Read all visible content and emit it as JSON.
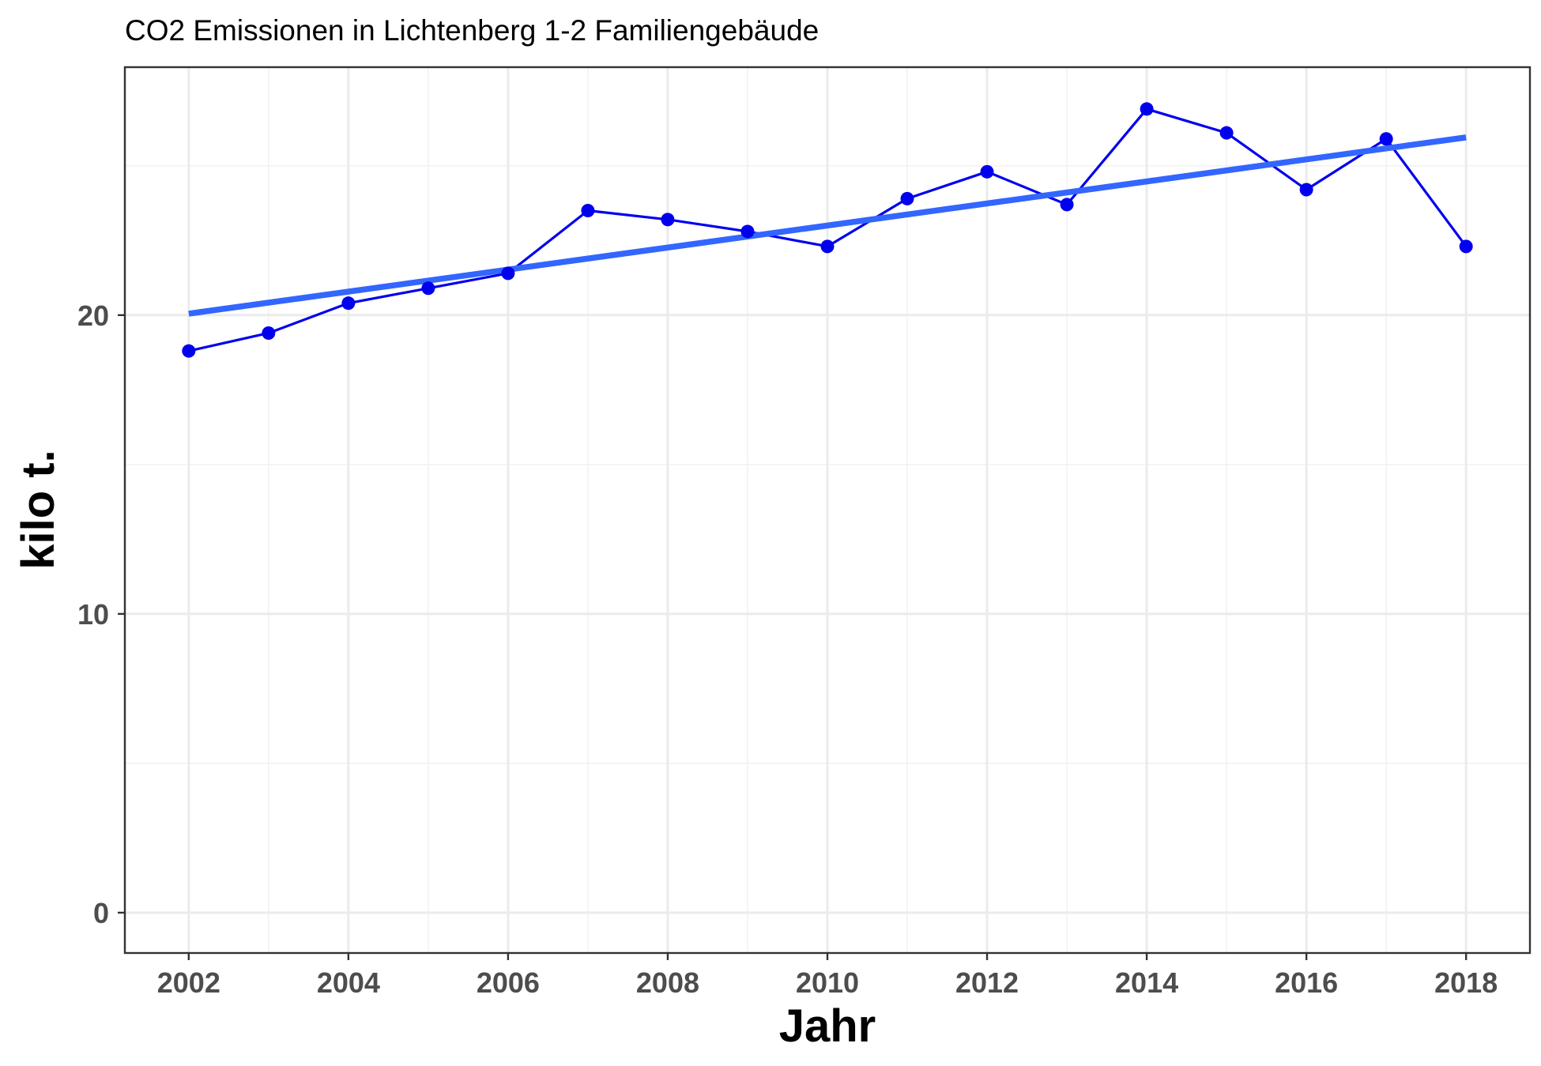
{
  "chart_data": {
    "type": "line",
    "title": "CO2 Emissionen in Lichtenberg 1-2 Familiengebäude",
    "xlabel": "Jahr",
    "ylabel": "kilo t.",
    "x": [
      2002,
      2003,
      2004,
      2005,
      2006,
      2007,
      2008,
      2009,
      2010,
      2011,
      2012,
      2013,
      2014,
      2015,
      2016,
      2017,
      2018
    ],
    "series": [
      {
        "values": [
          18.8,
          19.4,
          20.4,
          20.9,
          21.4,
          23.5,
          23.2,
          22.8,
          22.3,
          23.9,
          24.8,
          23.7,
          26.9,
          26.1,
          24.2,
          25.9,
          22.3
        ],
        "color": "#0000ee",
        "markers": true
      },
      {
        "values": [
          20.05,
          25.95
        ],
        "x": [
          2002,
          2018
        ],
        "color": "#3366ff",
        "style": "linear trend"
      }
    ],
    "xticks": [
      "2002",
      "2004",
      "2006",
      "2008",
      "2010",
      "2012",
      "2014",
      "2016",
      "2018"
    ],
    "yticks": [
      "0",
      "10",
      "20"
    ],
    "xlim": [
      2001.2,
      2018.8
    ],
    "ylim": [
      -1.35,
      28.3
    ],
    "grid": true,
    "legend": "none"
  }
}
